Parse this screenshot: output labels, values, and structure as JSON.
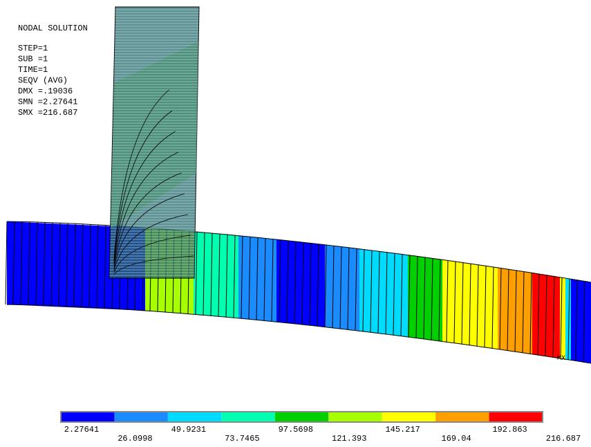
{
  "info": {
    "title": "NODAL SOLUTION",
    "lines": [
      "STEP=1",
      "SUB =1",
      "TIME=1",
      "SEQV     (AVG)",
      "DMX =.19036",
      "SMN =2.27641",
      "SMX =216.687"
    ]
  },
  "marker": "MX",
  "legend": {
    "labels": [
      "2.27641",
      "26.0998",
      "49.9231",
      "73.7465",
      "97.5698",
      "121.393",
      "145.217",
      "169.04",
      "192.863",
      "216.687"
    ],
    "colors": [
      "#0000ff",
      "#1a8cff",
      "#00dcff",
      "#00ffb0",
      "#00d000",
      "#a8ff00",
      "#ffff00",
      "#ffa000",
      "#ff0000"
    ]
  }
}
